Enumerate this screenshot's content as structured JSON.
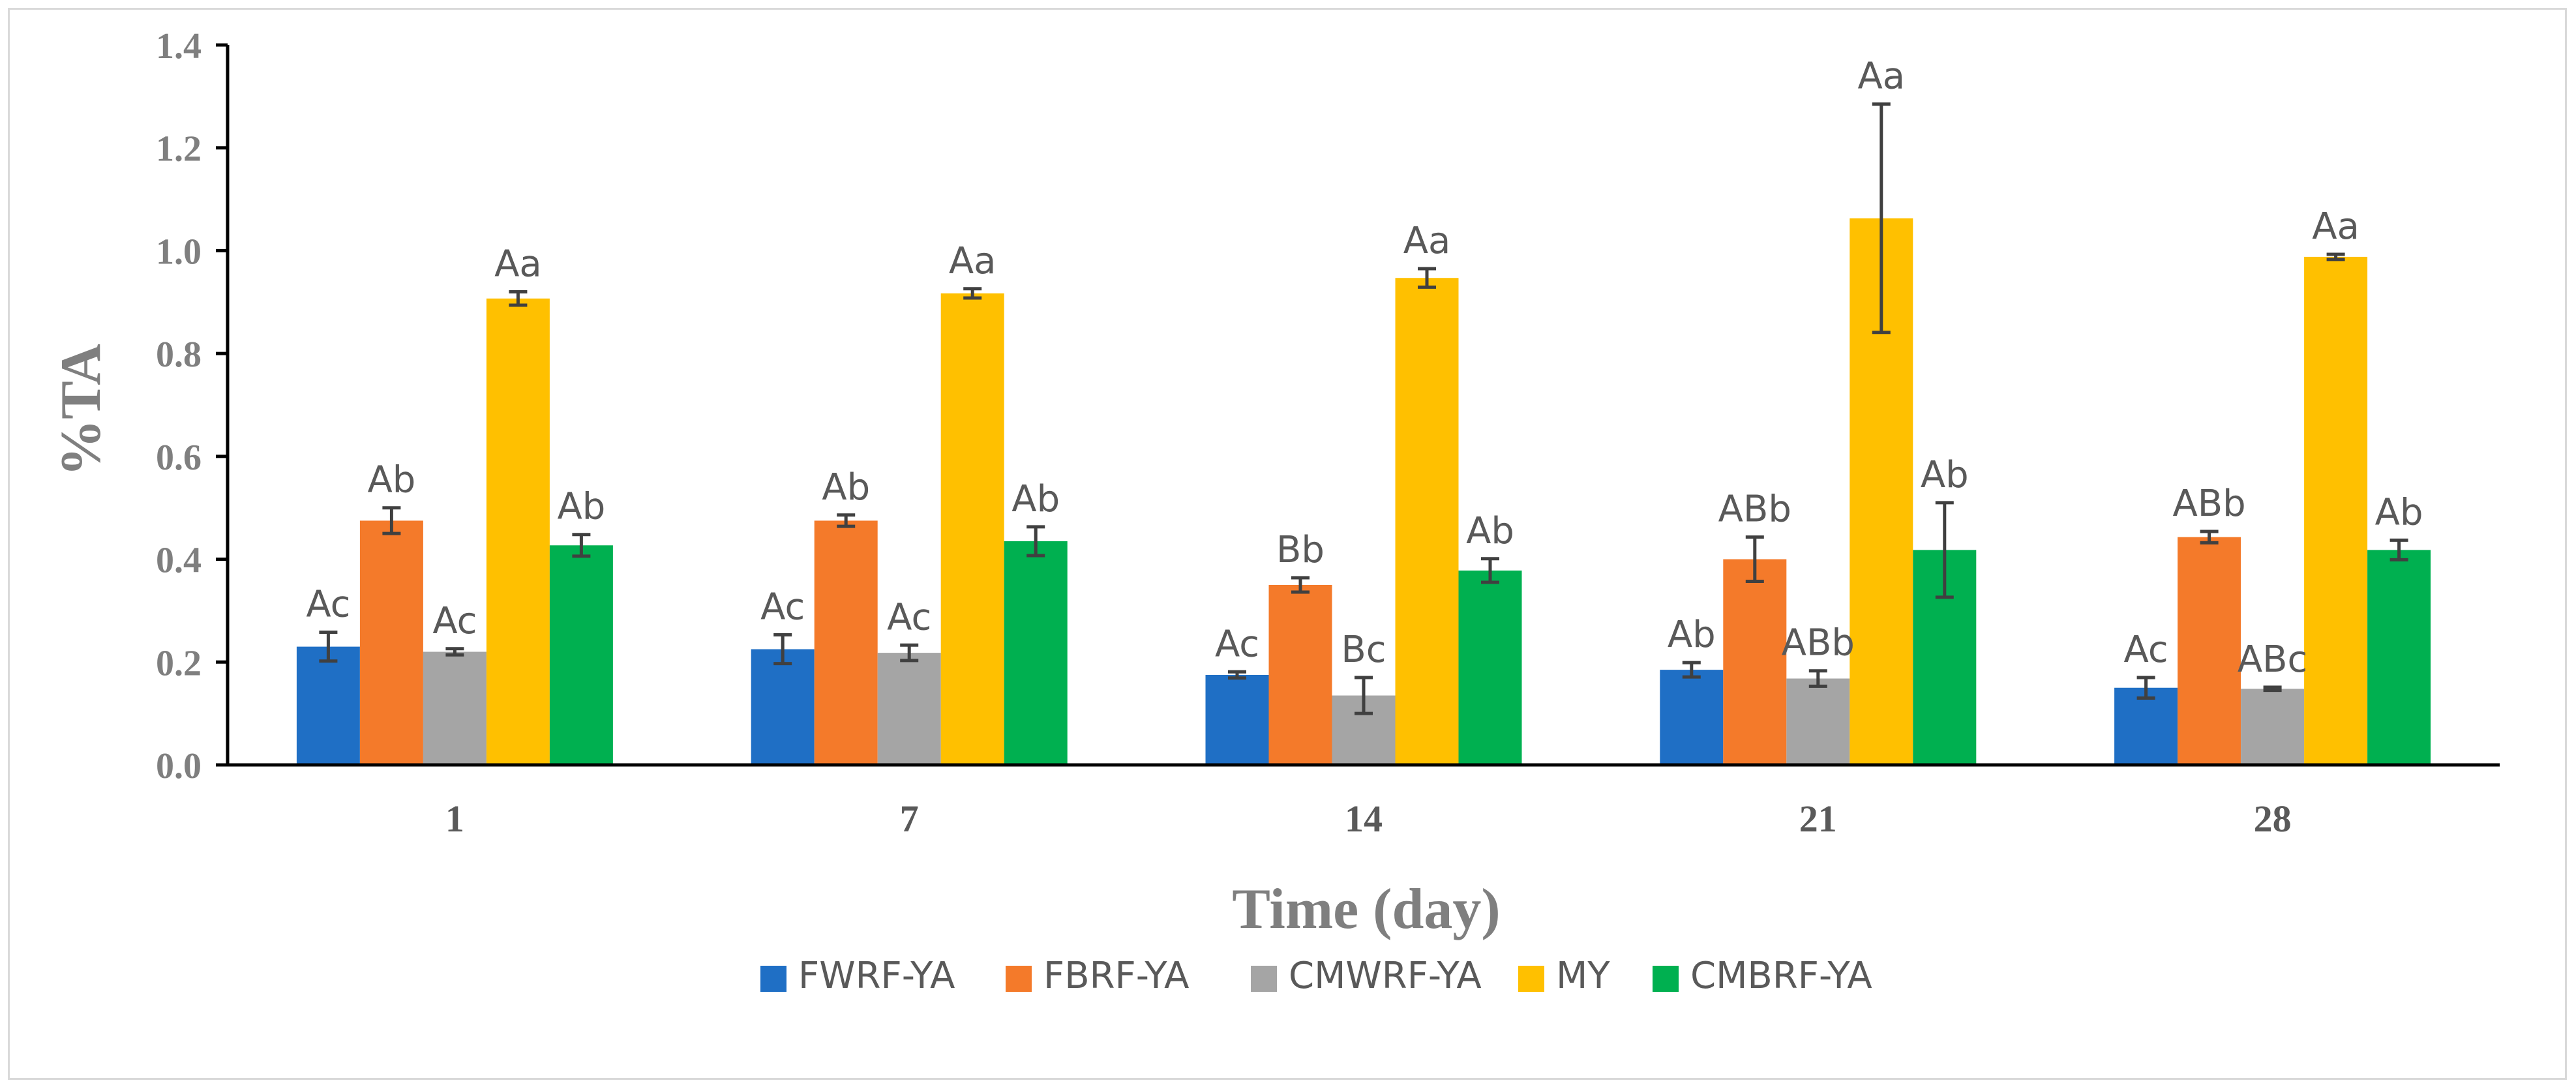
{
  "chart_data": {
    "type": "bar",
    "title": "",
    "xlabel": "Time (day)",
    "ylabel": "%TA",
    "ylim": [
      0,
      1.4
    ],
    "yticks": [
      "0.0",
      "0.2",
      "0.4",
      "0.6",
      "0.8",
      "1.0",
      "1.2",
      "1.4"
    ],
    "categories": [
      "1",
      "7",
      "14",
      "21",
      "28"
    ],
    "legend_position": "bottom",
    "series": [
      {
        "name": "FWRF-YA",
        "color": "#1f6fc5",
        "values": [
          0.23,
          0.225,
          0.175,
          0.185,
          0.15
        ],
        "errors": [
          0.028,
          0.028,
          0.006,
          0.014,
          0.02
        ],
        "labels": [
          "Ac",
          "Ac",
          "Ac",
          "Ab",
          "Ac"
        ]
      },
      {
        "name": "FBRF-YA",
        "color": "#f47a2a",
        "values": [
          0.475,
          0.475,
          0.35,
          0.4,
          0.443
        ],
        "errors": [
          0.025,
          0.011,
          0.014,
          0.043,
          0.011
        ],
        "labels": [
          "Ab",
          "Ab",
          "Bb",
          "ABb",
          "ABb"
        ]
      },
      {
        "name": "CMWRF-YA",
        "color": "#a5a5a5",
        "values": [
          0.22,
          0.218,
          0.135,
          0.168,
          0.148
        ],
        "errors": [
          0.006,
          0.015,
          0.035,
          0.015,
          0.003
        ],
        "labels": [
          "Ac",
          "Ac",
          "Bc",
          "ABb",
          "ABc"
        ]
      },
      {
        "name": "MY",
        "color": "#ffc000",
        "values": [
          0.907,
          0.917,
          0.947,
          1.063,
          0.988
        ],
        "errors": [
          0.013,
          0.009,
          0.018,
          0.222,
          0.005
        ],
        "labels": [
          "Aa",
          "Aa",
          "Aa",
          "Aa",
          "Aa"
        ]
      },
      {
        "name": "CMBRF-YA",
        "color": "#00b050",
        "values": [
          0.427,
          0.435,
          0.378,
          0.418,
          0.418
        ],
        "errors": [
          0.021,
          0.028,
          0.023,
          0.092,
          0.019
        ],
        "labels": [
          "Ab",
          "Ab",
          "Ab",
          "Ab",
          "Ab"
        ]
      }
    ]
  }
}
